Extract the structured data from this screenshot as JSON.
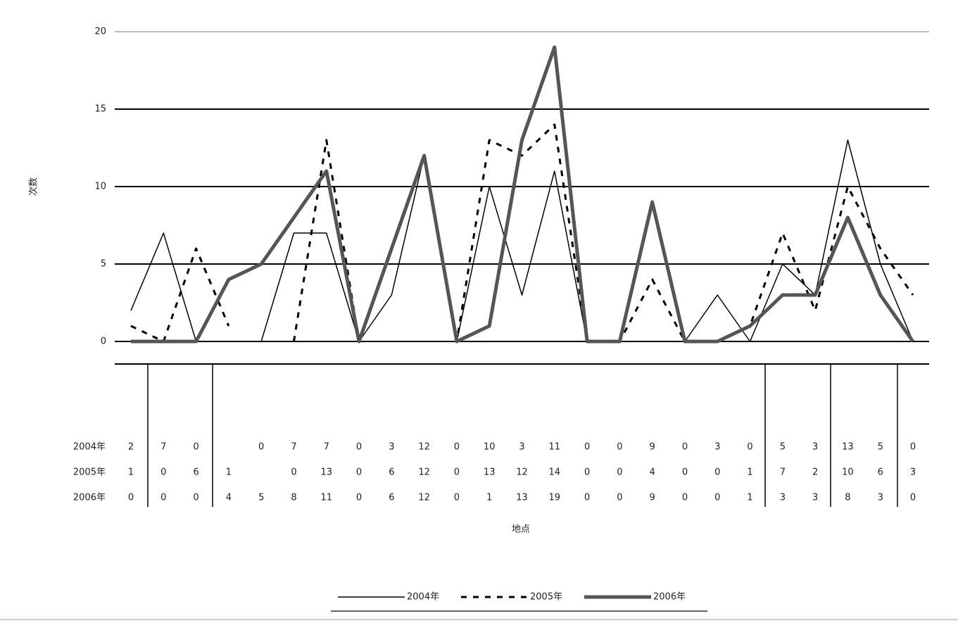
{
  "chart_data": {
    "type": "line",
    "y_label": "次数",
    "x_label": "地点",
    "categories": [
      null,
      null,
      null,
      null,
      null,
      null,
      null,
      null,
      null,
      null,
      null,
      null,
      null,
      null,
      null,
      null,
      null,
      null,
      null,
      null,
      null,
      null,
      null,
      null,
      null
    ],
    "series": [
      {
        "name": "2004年",
        "color": "#000000",
        "values": [
          2,
          7,
          0,
          null,
          0,
          7,
          7,
          0,
          3,
          12,
          0,
          10,
          3,
          11,
          0,
          0,
          9,
          0,
          3,
          0,
          5,
          3,
          13,
          5,
          0
        ]
      },
      {
        "name": "2005年",
        "color": "#000000",
        "values": [
          1,
          0,
          6,
          1,
          null,
          0,
          13,
          0,
          6,
          12,
          0,
          13,
          12,
          14,
          0,
          0,
          4,
          0,
          0,
          1,
          7,
          2,
          10,
          6,
          3
        ]
      },
      {
        "name": "2006年",
        "color": "#555555",
        "values": [
          0,
          0,
          0,
          4,
          5,
          8,
          11,
          0,
          6,
          12,
          0,
          1,
          13,
          19,
          0,
          0,
          9,
          0,
          0,
          1,
          3,
          3,
          8,
          3,
          0
        ]
      }
    ],
    "ylim": [
      0,
      20
    ],
    "yticks": [
      0,
      5,
      10,
      15,
      20
    ],
    "grid": true
  }
}
